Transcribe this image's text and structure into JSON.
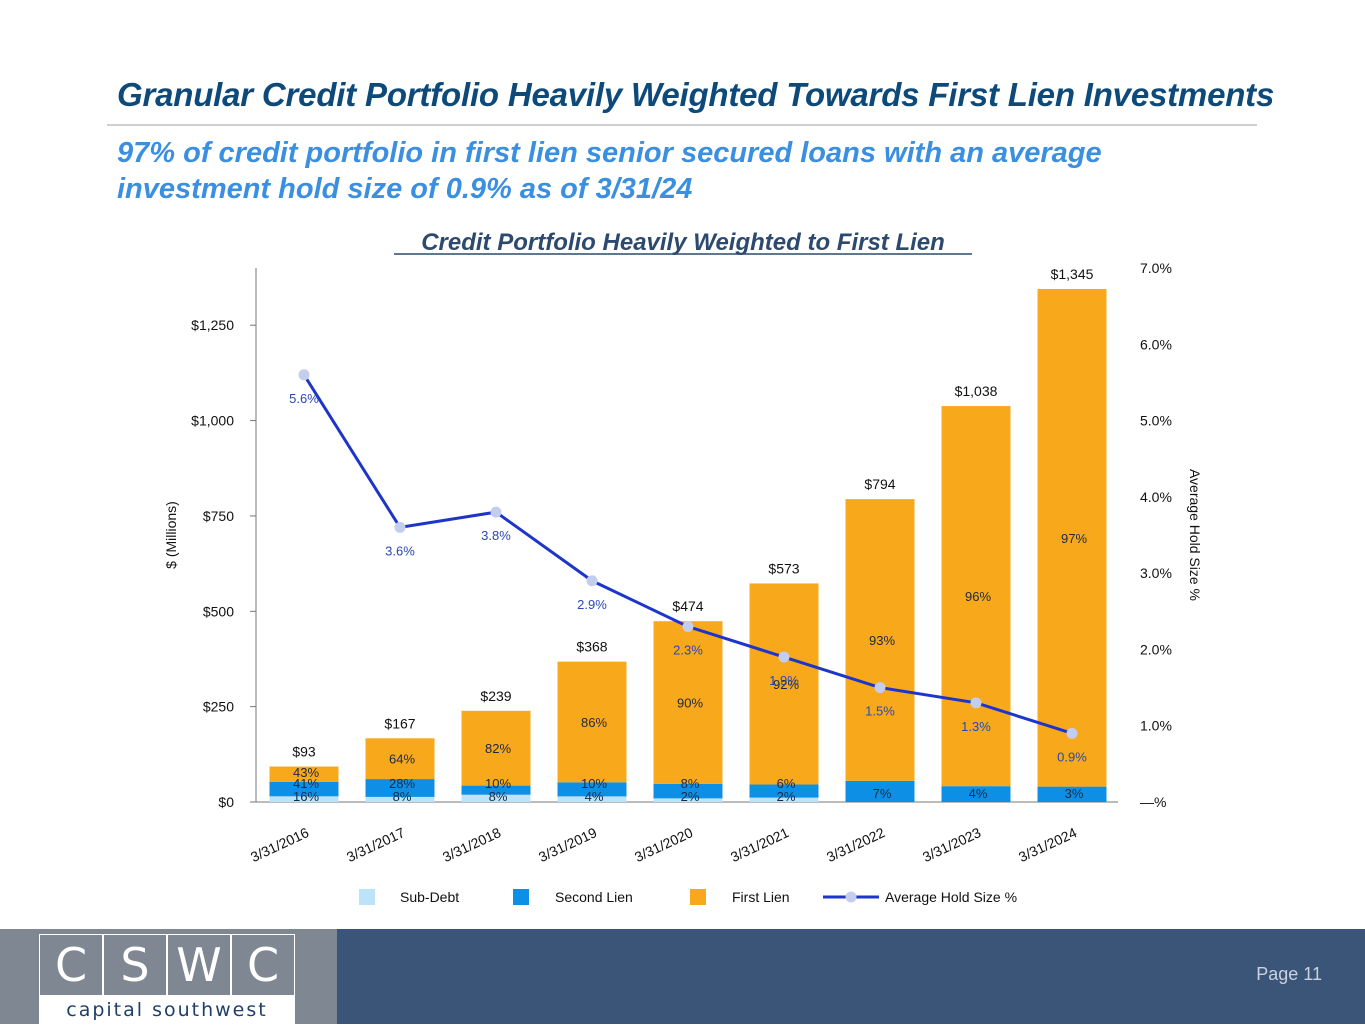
{
  "header": {
    "title": "Granular Credit Portfolio Heavily Weighted Towards First Lien Investments",
    "subtitle": "97% of credit portfolio in first lien senior secured loans with an average investment hold size of 0.9% as of 3/31/24"
  },
  "chart_data": {
    "type": "bar",
    "stacked": true,
    "title": "Credit Portfolio Heavily Weighted to First Lien",
    "ylabel": "$ (Millions)",
    "y2label": "Average Hold Size %",
    "ylim": [
      0,
      1400
    ],
    "y2lim": [
      0,
      7
    ],
    "yticks": [
      "$0",
      "$250",
      "$500",
      "$750",
      "$1,000",
      "$1,250"
    ],
    "y2ticks": [
      "—%",
      "1.0%",
      "2.0%",
      "3.0%",
      "4.0%",
      "5.0%",
      "6.0%",
      "7.0%"
    ],
    "categories": [
      "3/31/2016",
      "3/31/2017",
      "3/31/2018",
      "3/31/2019",
      "3/31/2020",
      "3/31/2021",
      "3/31/2022",
      "3/31/2023",
      "3/31/2024"
    ],
    "totals": [
      93,
      167,
      239,
      368,
      474,
      573,
      794,
      1038,
      1345
    ],
    "total_labels": [
      "$93",
      "$167",
      "$239",
      "$368",
      "$474",
      "$573",
      "$794",
      "$1,038",
      "$1,345"
    ],
    "series": [
      {
        "name": "Sub-Debt",
        "color": "#bde3f8",
        "pct": [
          16,
          8,
          8,
          4,
          2,
          2,
          0,
          0,
          0
        ],
        "labels": [
          "16%",
          "8%",
          "8%",
          "4%",
          "2%",
          "2%",
          "",
          "",
          ""
        ]
      },
      {
        "name": "Second Lien",
        "color": "#0e8fe6",
        "pct": [
          41,
          28,
          10,
          10,
          8,
          6,
          7,
          4,
          3
        ],
        "labels": [
          "41%",
          "28%",
          "10%",
          "10%",
          "8%",
          "6%",
          "7%",
          "4%",
          "3%"
        ]
      },
      {
        "name": "First Lien",
        "color": "#f7a81b",
        "pct": [
          43,
          64,
          82,
          86,
          90,
          92,
          93,
          96,
          97
        ],
        "labels": [
          "43%",
          "64%",
          "82%",
          "86%",
          "90%",
          "92%",
          "93%",
          "96%",
          "97%"
        ]
      }
    ],
    "line": {
      "name": "Average Hold Size %",
      "color": "#1d35c9",
      "values": [
        5.6,
        3.6,
        3.8,
        2.9,
        2.3,
        1.9,
        1.5,
        1.3,
        0.9
      ],
      "labels": [
        "5.6%",
        "3.6%",
        "3.8%",
        "2.9%",
        "2.3%",
        "1.9%",
        "1.5%",
        "1.3%",
        "0.9%"
      ]
    },
    "legend": [
      "Sub-Debt",
      "Second Lien",
      "First Lien",
      "Average Hold Size %"
    ],
    "legend_position": "bottom"
  },
  "footer": {
    "logo_letters": [
      "C",
      "S",
      "W",
      "C"
    ],
    "logo_text": "capital southwest",
    "page_label": "Page 11"
  }
}
